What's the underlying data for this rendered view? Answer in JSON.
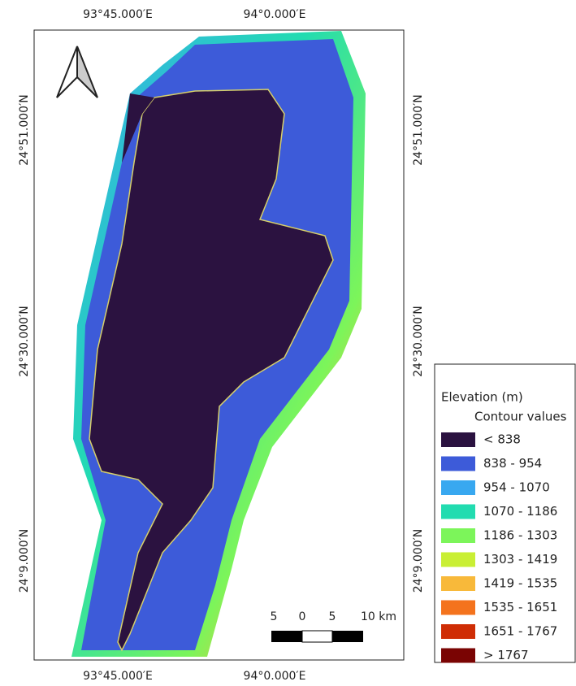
{
  "map": {
    "top_labels": [
      "93°45.000′E",
      "94°0.000′E"
    ],
    "bottom_labels": [
      "93°45.000′E",
      "94°0.000′E"
    ],
    "left_labels": [
      "24°51.000′N",
      "24°30.000′N",
      "24°9.000′N"
    ],
    "right_labels": [
      "24°51.000′N",
      "24°30.000′N",
      "24°9.000′N"
    ],
    "scale_bar": {
      "labels": [
        "5",
        "0",
        "5",
        "10 km"
      ]
    },
    "legend": {
      "title": "Elevation (m)",
      "subtitle": "Contour values",
      "items": [
        {
          "label": "< 838",
          "color": "#2b1240"
        },
        {
          "label": "838 - 954",
          "color": "#3d5bd9"
        },
        {
          "label": "954 - 1070",
          "color": "#38a8f0"
        },
        {
          "label": "1070 - 1186",
          "color": "#22dcb0"
        },
        {
          "label": "1186 - 1303",
          "color": "#7cf55a"
        },
        {
          "label": "1303 - 1419",
          "color": "#c9ef34"
        },
        {
          "label": "1419 - 1535",
          "color": "#f8b93a"
        },
        {
          "label": "1535 - 1651",
          "color": "#f4731d"
        },
        {
          "label": "1651 - 1767",
          "color": "#cf2d05"
        },
        {
          "label": "> 1767",
          "color": "#7a0403"
        }
      ]
    }
  }
}
